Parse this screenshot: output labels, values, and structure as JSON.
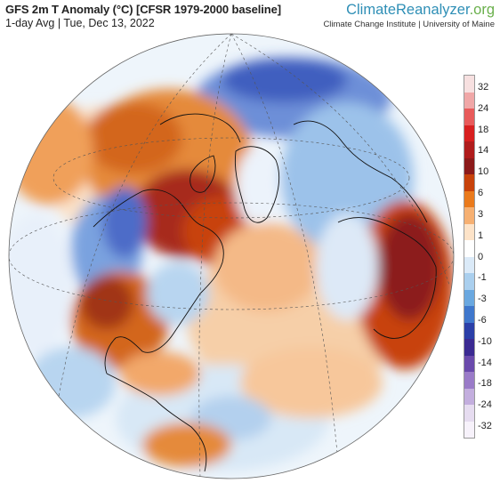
{
  "header": {
    "title": "GFS 2m T Anomaly (°C) [CFSR 1979-2000 baseline]",
    "subtitle": "1-day Avg | Tue, Dec 13, 2022"
  },
  "brand": {
    "name_main": "ClimateReanalyzer",
    "name_suffix": ".org",
    "affiliation": "Climate Change Institute | University of Maine"
  },
  "map": {
    "projection": "orthographic",
    "center": "North Atlantic / Arctic",
    "graticule": "dashed"
  },
  "legend": {
    "labels": [
      "32",
      "24",
      "18",
      "14",
      "10",
      "6",
      "3",
      "1",
      "0",
      "-1",
      "-3",
      "-6",
      "-10",
      "-14",
      "-18",
      "-24",
      "-32"
    ],
    "colors": [
      "#f7e0e0",
      "#f0a7a7",
      "#e85a5a",
      "#d81f1f",
      "#b01c1c",
      "#8c1a1a",
      "#c8420a",
      "#ea7a1c",
      "#f6b072",
      "#fde3c8",
      "#ffffff",
      "#dbeaf8",
      "#aacfee",
      "#6aa8e0",
      "#3f77cc",
      "#2b3fa8",
      "#3b2a92",
      "#6a4aac",
      "#9a7bc8",
      "#c3aede",
      "#e6dcf0",
      "#f7f2fb"
    ]
  }
}
